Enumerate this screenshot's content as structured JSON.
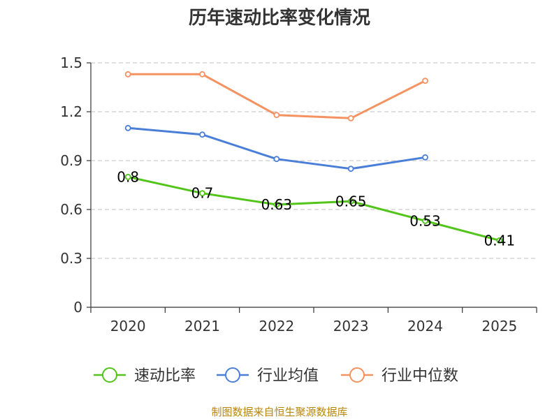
{
  "chart_data": {
    "type": "line",
    "title": "历年速动比率变化情况",
    "categories": [
      "2020",
      "2021",
      "2022",
      "2023",
      "2024",
      "2025"
    ],
    "ylim": [
      0,
      1.5
    ],
    "yticks": [
      "0",
      "0.3",
      "0.6",
      "0.9",
      "1.2",
      "1.5"
    ],
    "grid": true,
    "legend_position": "bottom",
    "series": [
      {
        "name": "速动比率",
        "color": "#52c41a",
        "values": [
          0.8,
          0.7,
          0.63,
          0.65,
          0.53,
          0.41
        ],
        "labels": [
          "0.8",
          "0.7",
          "0.63",
          "0.65",
          "0.53",
          "0.41"
        ]
      },
      {
        "name": "行业均值",
        "color": "#4a7fd8",
        "values": [
          1.1,
          1.06,
          0.91,
          0.85,
          0.92,
          null
        ]
      },
      {
        "name": "行业中位数",
        "color": "#f59262",
        "values": [
          1.43,
          1.43,
          1.18,
          1.16,
          1.39,
          null
        ]
      }
    ]
  },
  "source": {
    "text": "制图数据来自恒生聚源数据库",
    "color": "#b8860b"
  }
}
